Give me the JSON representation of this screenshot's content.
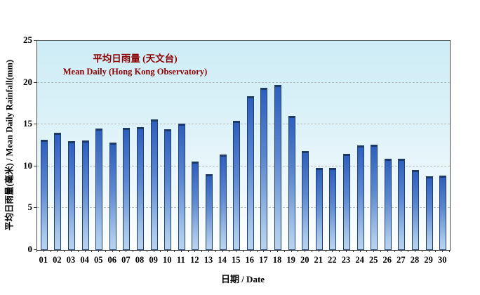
{
  "chart_data": {
    "type": "bar",
    "title_zh": "平均日雨量 (天文台)",
    "title_en": "Mean Daily (Hong Kong Observatory)",
    "xlabel": "日期 / Date",
    "ylabel": "平均日雨量(毫米) / Mean Daily Rainfall(mm)",
    "categories": [
      "01",
      "02",
      "03",
      "04",
      "05",
      "06",
      "07",
      "08",
      "09",
      "10",
      "11",
      "12",
      "13",
      "14",
      "15",
      "16",
      "17",
      "18",
      "19",
      "20",
      "21",
      "22",
      "23",
      "24",
      "25",
      "26",
      "27",
      "28",
      "29",
      "30"
    ],
    "values": [
      13.2,
      14.0,
      13.0,
      13.1,
      14.5,
      12.8,
      14.6,
      14.7,
      15.6,
      14.4,
      15.1,
      10.6,
      9.1,
      11.4,
      15.4,
      18.4,
      19.4,
      19.7,
      16.0,
      11.8,
      9.8,
      9.8,
      11.5,
      12.5,
      12.6,
      10.9,
      10.9,
      9.6,
      8.8,
      8.9
    ],
    "ylim": [
      0,
      25
    ],
    "y_ticks": [
      0,
      5,
      10,
      15,
      20,
      25
    ],
    "grid": "horizontal dashed lines at 5,10,15,20",
    "legend_position": "upper-left inside plot (title text block)",
    "colors": {
      "title_text": "#8B0000",
      "axis_text": "#000000",
      "plot_border": "#4a4a4a",
      "grid_line": "#b9bdb9",
      "bar_top": "#2f5fbe",
      "bar_bottom": "#b9d3ee",
      "bar_outline": "#1d3f6e",
      "plot_bg_top": "#cdecf6",
      "plot_bg_bottom": "#fdfeff",
      "page_bg": "#ffffff"
    }
  }
}
